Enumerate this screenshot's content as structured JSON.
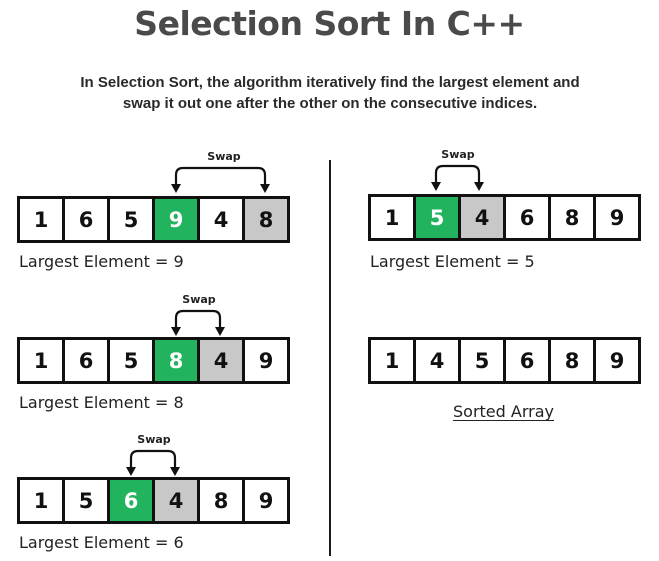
{
  "title": "Selection Sort In C++",
  "description": {
    "line1": "In Selection Sort, the algorithm iteratively find the largest element and",
    "line2": "swap it out one after the other on the consecutive indices."
  },
  "swap_label": "Swap",
  "colors": {
    "highlight_largest": "#22b35e",
    "highlight_swap_target": "#c8c8c8",
    "title": "#4a4a4a",
    "border": "#111111"
  },
  "steps": [
    {
      "values": [
        "1",
        "6",
        "5",
        "9",
        "4",
        "8"
      ],
      "largest_index": 3,
      "swap_index": 5,
      "caption": "Largest Element = 9"
    },
    {
      "values": [
        "1",
        "6",
        "5",
        "8",
        "4",
        "9"
      ],
      "largest_index": 3,
      "swap_index": 4,
      "caption": "Largest Element = 8"
    },
    {
      "values": [
        "1",
        "5",
        "6",
        "4",
        "8",
        "9"
      ],
      "largest_index": 2,
      "swap_index": 3,
      "caption": "Largest Element = 6"
    },
    {
      "values": [
        "1",
        "5",
        "4",
        "6",
        "8",
        "9"
      ],
      "largest_index": 1,
      "swap_index": 2,
      "caption": "Largest Element = 5"
    },
    {
      "values": [
        "1",
        "4",
        "5",
        "6",
        "8",
        "9"
      ],
      "largest_index": null,
      "swap_index": null,
      "caption": "Sorted Array"
    }
  ]
}
